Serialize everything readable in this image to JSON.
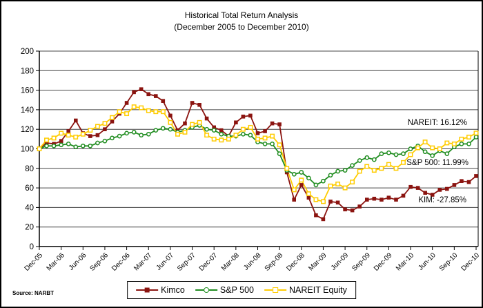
{
  "chart_data": {
    "type": "line",
    "title": "Historical Total Return Analysis",
    "subtitle": "(December 2005 to December 2010)",
    "source_note": "Source: NARBT",
    "x_frequency": "monthly",
    "n_points": 61,
    "x_tick_labels": [
      "Dec-05",
      "Mar-06",
      "Jun-06",
      "Sep-06",
      "Dec-06",
      "Mar-07",
      "Jun-07",
      "Sep-07",
      "Dec-07",
      "Mar-08",
      "Jun-08",
      "Sep-08",
      "Dec-08",
      "Mar-09",
      "Jun-09",
      "Sep-09",
      "Dec-09",
      "Mar-10",
      "Jun-10",
      "Sep-10",
      "Dec-10"
    ],
    "y_ticks": [
      0,
      20,
      40,
      60,
      80,
      100,
      120,
      140,
      160,
      180,
      200
    ],
    "ylim": [
      0,
      200
    ],
    "grid": "horizontal",
    "legend_position": "bottom-center",
    "series": [
      {
        "name": "Kimco",
        "color": "#8B1410",
        "marker": "filled-square",
        "values": [
          100,
          106,
          105,
          108,
          118,
          129,
          116,
          113,
          114,
          120,
          128,
          136,
          147,
          158,
          161,
          156,
          154,
          149,
          134,
          119,
          126,
          147,
          145,
          131,
          122,
          119,
          113,
          127,
          133,
          134,
          116,
          118,
          126,
          125,
          76,
          48,
          63,
          50,
          32,
          28,
          46,
          45,
          38,
          37,
          41,
          48,
          49,
          48,
          50,
          48,
          52,
          61,
          60,
          55,
          53,
          58,
          59,
          63,
          67,
          66,
          72.15
        ]
      },
      {
        "name": "S&P 500",
        "color": "#1E8C1E",
        "marker": "open-circle",
        "values": [
          100,
          103,
          103,
          104,
          105,
          102,
          103,
          103,
          106,
          108,
          111,
          113,
          116,
          117,
          114,
          115,
          119,
          121,
          120,
          117,
          119,
          122,
          124,
          120,
          119,
          115,
          113,
          113,
          115,
          114,
          107,
          105,
          105,
          95,
          78,
          74,
          76,
          70,
          63,
          67,
          73,
          77,
          78,
          83,
          88,
          91,
          89,
          95,
          96,
          94,
          95,
          100,
          103,
          97,
          93,
          98,
          95,
          102,
          105,
          105,
          111.99
        ]
      },
      {
        "name": "NAREIT Equity",
        "color": "#FFCC00",
        "marker": "open-square",
        "values": [
          100,
          109,
          111,
          116,
          114,
          112,
          115,
          119,
          123,
          126,
          132,
          138,
          136,
          143,
          142,
          139,
          138,
          138,
          127,
          115,
          117,
          125,
          127,
          114,
          110,
          109,
          110,
          114,
          120,
          122,
          110,
          111,
          113,
          104,
          80,
          58,
          68,
          54,
          48,
          46,
          62,
          64,
          60,
          66,
          77,
          82,
          78,
          80,
          84,
          80,
          86,
          94,
          101,
          107,
          101,
          100,
          106,
          105,
          110,
          112,
          116.12
        ]
      }
    ],
    "annotations": [
      {
        "text": "NAREIT: 16.12%",
        "series": "NAREIT Equity"
      },
      {
        "text": "S&P 500: 11.99%",
        "series": "S&P 500"
      },
      {
        "text": "KIM: -27.85%",
        "series": "Kimco"
      }
    ]
  }
}
